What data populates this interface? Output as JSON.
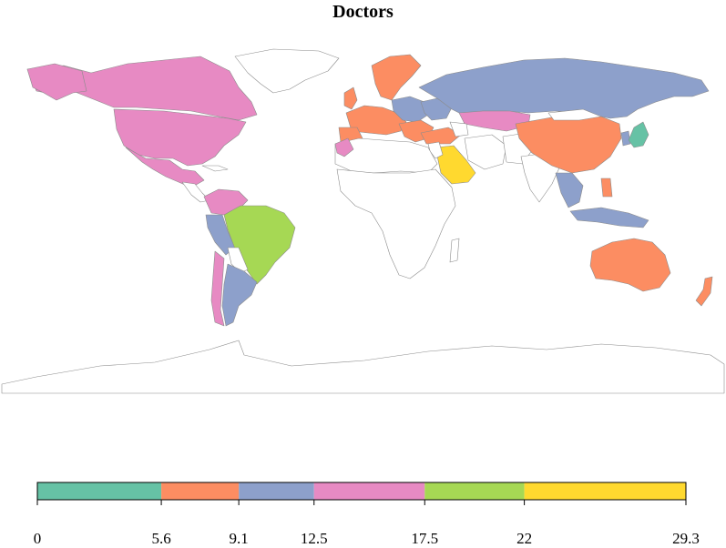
{
  "title": "Doctors",
  "colors": {
    "c1": "#66c2a5",
    "c2": "#fc8d62",
    "c3": "#8da0cb",
    "c4": "#e78ac3",
    "c5": "#a6d854",
    "c6": "#ffd92f",
    "nodata": "#ffffff",
    "border": "#8c8c8c"
  },
  "legend": {
    "breaks": [
      "0",
      "5.6",
      "9.1",
      "12.5",
      "17.5",
      "22",
      "29.3"
    ],
    "classes": [
      {
        "from": 0,
        "to": 5.6,
        "color": "#66c2a5"
      },
      {
        "from": 5.6,
        "to": 9.1,
        "color": "#fc8d62"
      },
      {
        "from": 9.1,
        "to": 12.5,
        "color": "#8da0cb"
      },
      {
        "from": 12.5,
        "to": 17.5,
        "color": "#e78ac3"
      },
      {
        "from": 17.5,
        "to": 22,
        "color": "#a6d854"
      },
      {
        "from": 22,
        "to": 29.3,
        "color": "#ffd92f"
      }
    ]
  }
}
